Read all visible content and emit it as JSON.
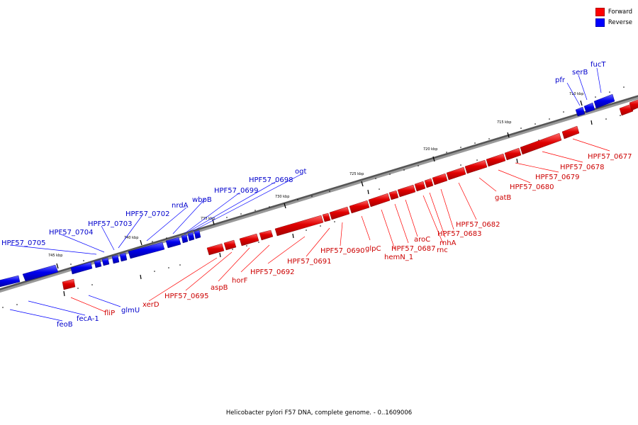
{
  "legend": {
    "forward": {
      "label": "Forward",
      "color": "#ff0000"
    },
    "reverse": {
      "label": "Reverse",
      "color": "#0000ff"
    }
  },
  "caption": "Helicobacter pylori F57 DNA, complete genome. - 0..1609006",
  "tick_labels": [
    "745 kbp",
    "740 kbp",
    "735 kbp",
    "730 kbp",
    "725 kbp",
    "720 kbp",
    "715 kbp",
    "710 kbp"
  ],
  "genes_reverse": [
    "HPF57_0705",
    "HPF57_0704",
    "HPF57_0703",
    "HPF57_0702",
    "nrdA",
    "wbpB",
    "HPF57_0699",
    "HPF57_0698",
    "ogt",
    "pfr",
    "serB",
    "fucT",
    "feoB",
    "fecA-1",
    "glmU"
  ],
  "genes_forward": [
    "fliP",
    "xerD",
    "HPF57_0695",
    "aspB",
    "horF",
    "HPF57_0692",
    "HPF57_0691",
    "HPF57_0690",
    "glpC",
    "hemN_1",
    "HPF57_0687",
    "aroC",
    "rnc",
    "rnhA",
    "HPF57_0683",
    "HPF57_0682",
    "gatB",
    "HPF57_0680",
    "HPF57_0679",
    "HPF57_0678",
    "HPF57_0677"
  ]
}
